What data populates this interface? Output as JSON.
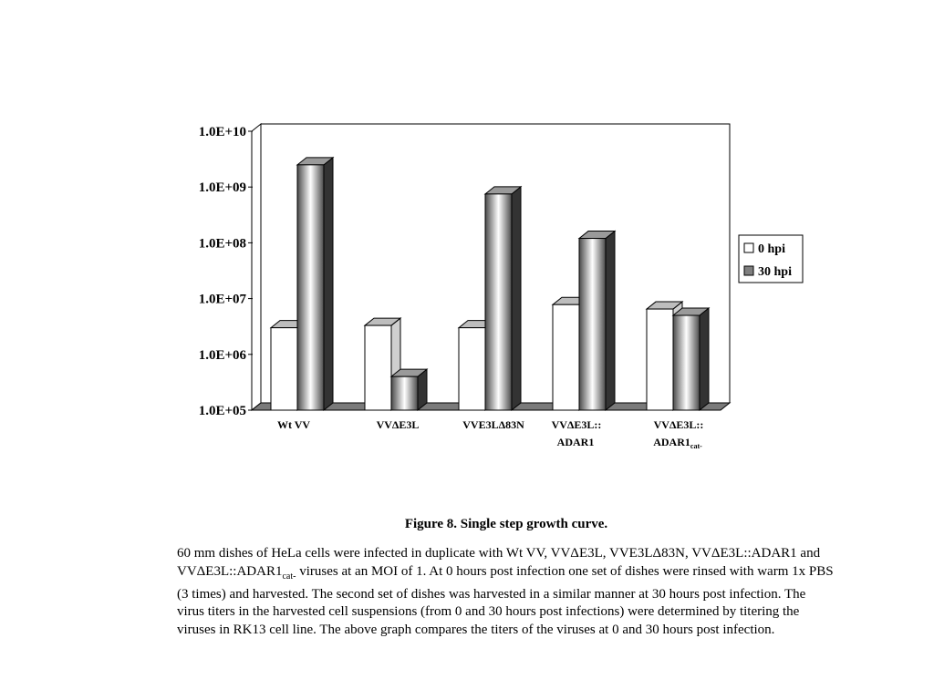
{
  "chart_data": {
    "type": "bar",
    "categories": [
      {
        "line1": "Wt VV",
        "line2": "",
        "sub": ""
      },
      {
        "line1": "VVΔE3L",
        "line2": "",
        "sub": ""
      },
      {
        "line1": "VVE3LΔ83N",
        "line2": "",
        "sub": ""
      },
      {
        "line1": "VVΔE3L::",
        "line2": "ADAR1",
        "sub": ""
      },
      {
        "line1": "VVΔE3L::",
        "line2": "ADAR1",
        "sub": "cat-"
      }
    ],
    "series": [
      {
        "name": "0 hpi",
        "values": [
          3000000,
          3300000,
          3000000,
          7800000,
          6500000
        ],
        "color": "#ffffff"
      },
      {
        "name": "30 hpi",
        "values": [
          2500000000,
          400000,
          750000000,
          120000000,
          5000000
        ],
        "color": "#7f7f7f"
      }
    ],
    "y_scale": "log",
    "ylim": [
      100000,
      10000000000
    ],
    "yticks": [
      "1.0E+05",
      "1.0E+06",
      "1.0E+07",
      "1.0E+08",
      "1.0E+09",
      "1.0E+10"
    ],
    "legend_placement": "right",
    "grid": false
  },
  "caption": {
    "title": "Figure 8. Single step growth curve.",
    "p1": "60 mm dishes of HeLa cells were infected in duplicate with Wt VV, VVΔE3L, VVE3LΔ83N, VVΔE3L::ADAR1 and VVΔE3L::ADAR1",
    "p1_sub": "cat-",
    "p2": " viruses at an MOI of 1.  At 0 hours post infection one set of dishes were rinsed with warm 1x PBS (3 times) and harvested.  The second set of dishes was harvested in a similar manner at 30 hours post infection.  The virus titers in the harvested cell suspensions (from 0 and 30 hours post infections) were determined by titering the viruses in RK13 cell line.  The above graph compares the titers of the viruses at 0 and 30 hours post infection."
  }
}
